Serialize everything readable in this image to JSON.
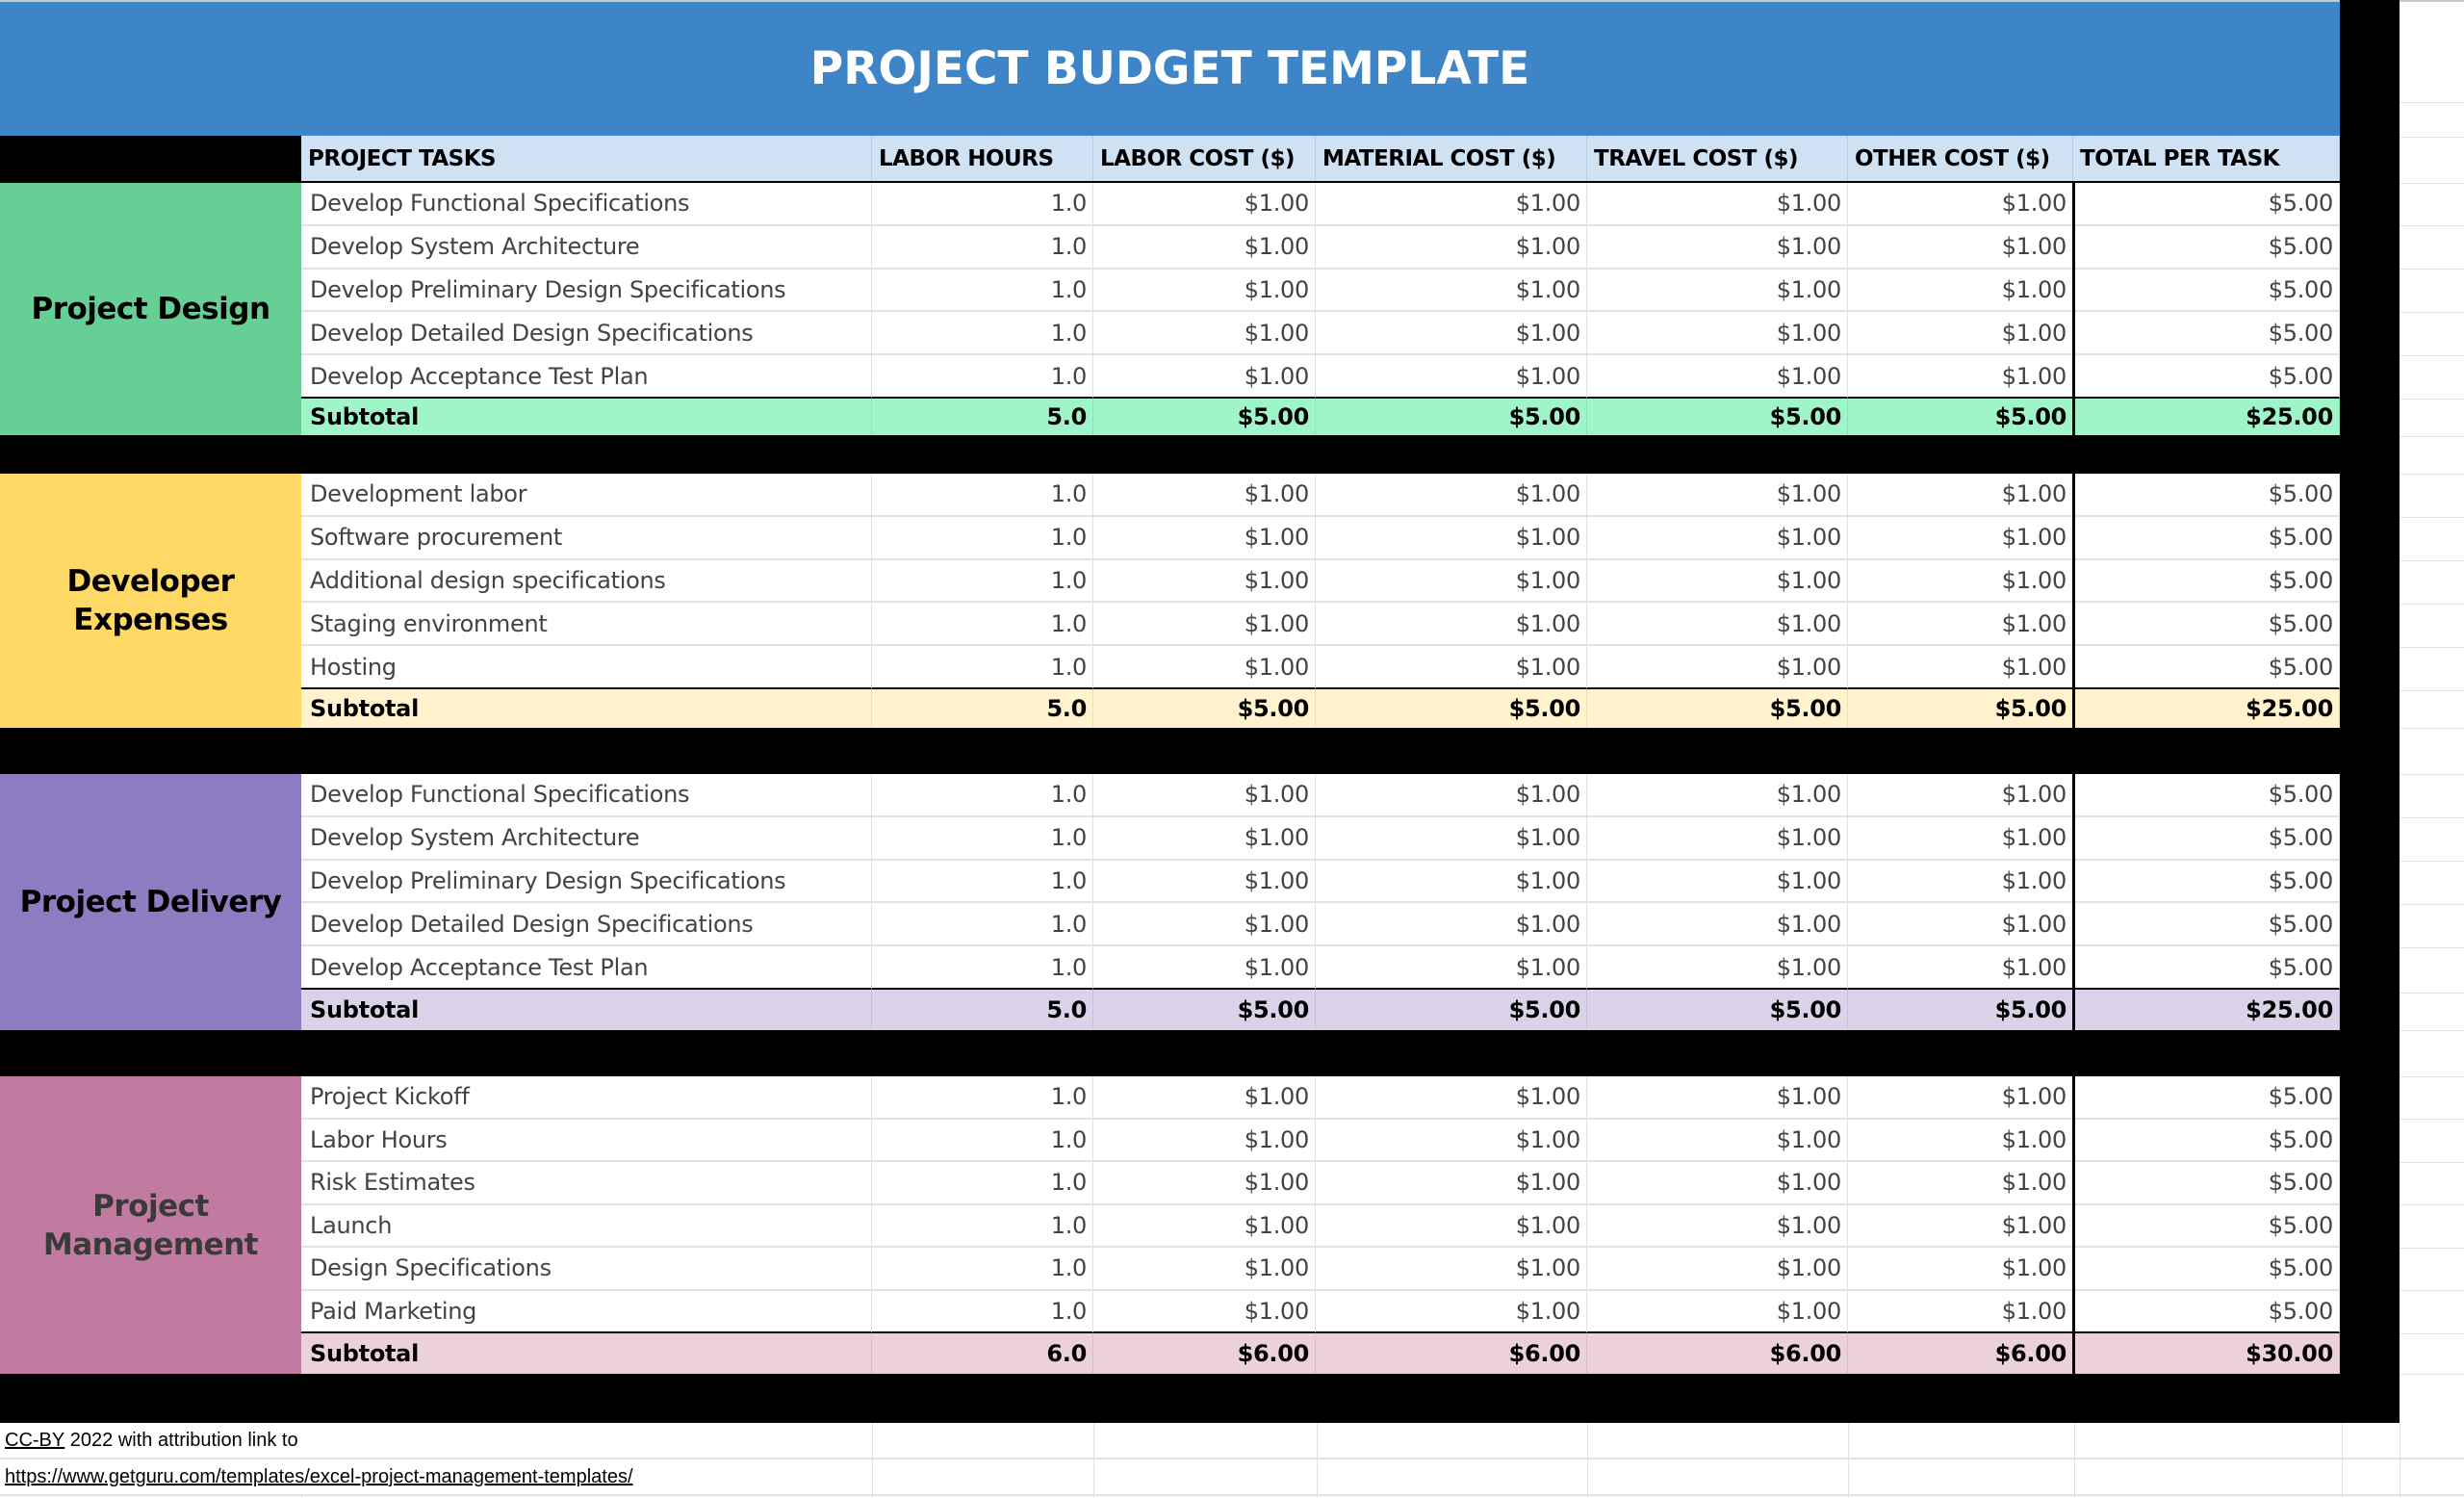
{
  "title": "PROJECT BUDGET TEMPLATE",
  "colors": {
    "title_bg": "#3d85c6",
    "header_bg": "#cfe2f3",
    "divider": "#000000"
  },
  "columns": [
    "PROJECT TASKS",
    "LABOR HOURS",
    "LABOR COST ($)",
    "MATERIAL COST ($)",
    "TRAVEL COST ($)",
    "OTHER COST ($)",
    "TOTAL PER TASK"
  ],
  "sections": [
    {
      "label": "Project Design",
      "label_color": "#66cf96",
      "subtotal_color": "#9ff5c8",
      "label_text_color": "#000000",
      "rows": [
        [
          "Develop Functional Specifications",
          "1.0",
          "$1.00",
          "$1.00",
          "$1.00",
          "$1.00",
          "$5.00"
        ],
        [
          "Develop System Architecture",
          "1.0",
          "$1.00",
          "$1.00",
          "$1.00",
          "$1.00",
          "$5.00"
        ],
        [
          "Develop Preliminary Design Specifications",
          "1.0",
          "$1.00",
          "$1.00",
          "$1.00",
          "$1.00",
          "$5.00"
        ],
        [
          "Develop Detailed Design Specifications",
          "1.0",
          "$1.00",
          "$1.00",
          "$1.00",
          "$1.00",
          "$5.00"
        ],
        [
          "Develop Acceptance Test Plan",
          "1.0",
          "$1.00",
          "$1.00",
          "$1.00",
          "$1.00",
          "$5.00"
        ]
      ],
      "subtotal": [
        "Subtotal",
        "5.0",
        "$5.00",
        "$5.00",
        "$5.00",
        "$5.00",
        "$25.00"
      ]
    },
    {
      "label": "Developer Expenses",
      "label_lines": [
        "Developer",
        "Expenses"
      ],
      "label_color": "#ffd966",
      "subtotal_color": "#fff2cc",
      "label_text_color": "#000000",
      "rows": [
        [
          "Development labor",
          "1.0",
          "$1.00",
          "$1.00",
          "$1.00",
          "$1.00",
          "$5.00"
        ],
        [
          "Software procurement",
          "1.0",
          "$1.00",
          "$1.00",
          "$1.00",
          "$1.00",
          "$5.00"
        ],
        [
          "Additional design specifications",
          "1.0",
          "$1.00",
          "$1.00",
          "$1.00",
          "$1.00",
          "$5.00"
        ],
        [
          "Staging environment",
          "1.0",
          "$1.00",
          "$1.00",
          "$1.00",
          "$1.00",
          "$5.00"
        ],
        [
          "Hosting",
          "1.0",
          "$1.00",
          "$1.00",
          "$1.00",
          "$1.00",
          "$5.00"
        ]
      ],
      "subtotal": [
        "Subtotal",
        "5.0",
        "$5.00",
        "$5.00",
        "$5.00",
        "$5.00",
        "$25.00"
      ]
    },
    {
      "label": "Project Delivery",
      "label_color": "#8e7cc3",
      "subtotal_color": "#d9d2e9",
      "label_text_color": "#000000",
      "rows": [
        [
          "Develop Functional Specifications",
          "1.0",
          "$1.00",
          "$1.00",
          "$1.00",
          "$1.00",
          "$5.00"
        ],
        [
          "Develop System Architecture",
          "1.0",
          "$1.00",
          "$1.00",
          "$1.00",
          "$1.00",
          "$5.00"
        ],
        [
          "Develop Preliminary Design Specifications",
          "1.0",
          "$1.00",
          "$1.00",
          "$1.00",
          "$1.00",
          "$5.00"
        ],
        [
          "Develop Detailed Design Specifications",
          "1.0",
          "$1.00",
          "$1.00",
          "$1.00",
          "$1.00",
          "$5.00"
        ],
        [
          "Develop Acceptance Test Plan",
          "1.0",
          "$1.00",
          "$1.00",
          "$1.00",
          "$1.00",
          "$5.00"
        ]
      ],
      "subtotal": [
        "Subtotal",
        "5.0",
        "$5.00",
        "$5.00",
        "$5.00",
        "$5.00",
        "$25.00"
      ]
    },
    {
      "label": "Project Management",
      "label_lines": [
        "Project",
        "Management"
      ],
      "label_color": "#c27ba0",
      "subtotal_color": "#ead1dc",
      "label_text_color": "#3a3a3a",
      "rows": [
        [
          "Project Kickoff",
          "1.0",
          "$1.00",
          "$1.00",
          "$1.00",
          "$1.00",
          "$5.00"
        ],
        [
          "Labor Hours",
          "1.0",
          "$1.00",
          "$1.00",
          "$1.00",
          "$1.00",
          "$5.00"
        ],
        [
          "Risk Estimates",
          "1.0",
          "$1.00",
          "$1.00",
          "$1.00",
          "$1.00",
          "$5.00"
        ],
        [
          "Launch",
          "1.0",
          "$1.00",
          "$1.00",
          "$1.00",
          "$1.00",
          "$5.00"
        ],
        [
          "Design Specifications",
          "1.0",
          "$1.00",
          "$1.00",
          "$1.00",
          "$1.00",
          "$5.00"
        ],
        [
          "Paid Marketing",
          "1.0",
          "$1.00",
          "$1.00",
          "$1.00",
          "$1.00",
          "$5.00"
        ]
      ],
      "subtotal": [
        "Subtotal",
        "6.0",
        "$6.00",
        "$6.00",
        "$6.00",
        "$6.00",
        "$30.00"
      ]
    }
  ],
  "footer": {
    "license_link": "CC-BY",
    "license_text": " 2022 with attribution link to",
    "url": "https://www.getguru.com/templates/excel-project-management-templates/"
  }
}
